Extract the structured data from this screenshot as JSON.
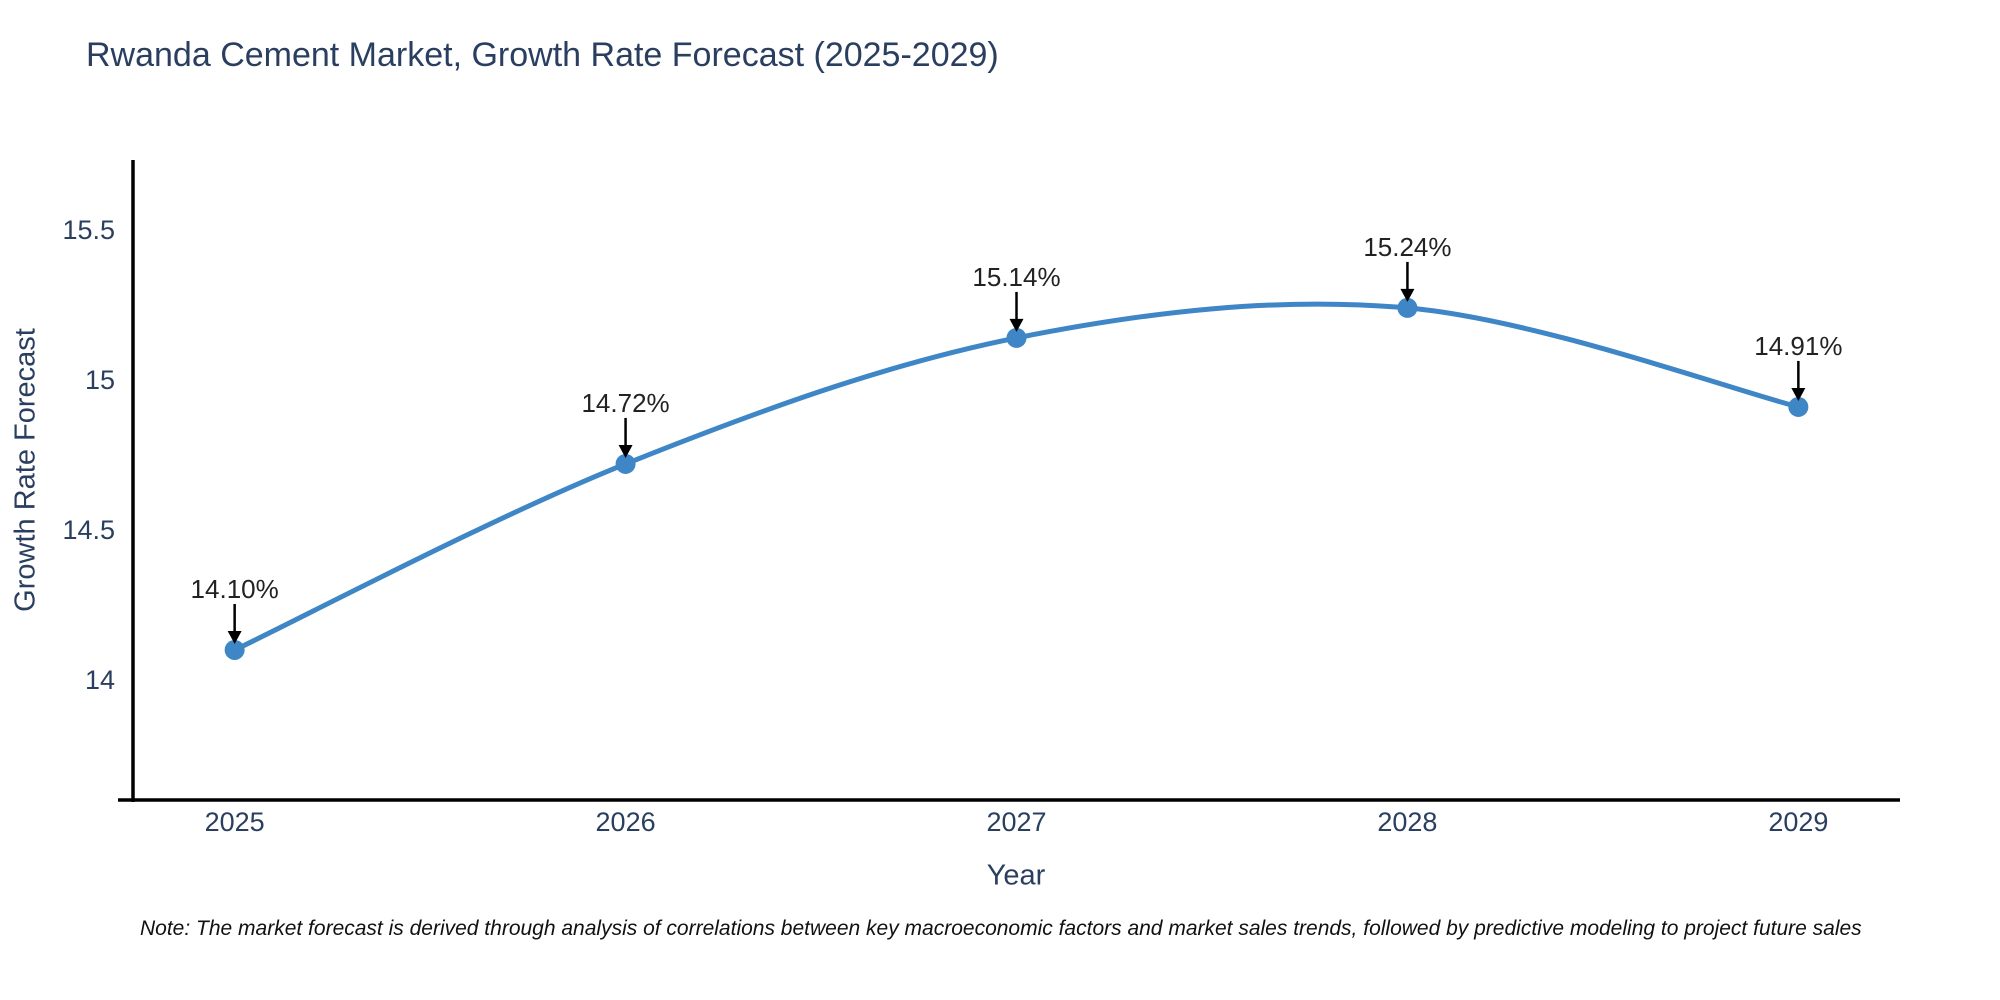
{
  "chart_data": {
    "type": "line",
    "title": "Rwanda Cement Market, Growth Rate Forecast (2025-2029)",
    "xlabel": "Year",
    "ylabel": "Growth Rate Forecast",
    "x": [
      2025,
      2026,
      2027,
      2028,
      2029
    ],
    "values": [
      14.1,
      14.72,
      15.14,
      15.24,
      14.91
    ],
    "point_labels": [
      "14.10%",
      "14.72%",
      "15.14%",
      "15.24%",
      "14.91%"
    ],
    "x_tick_labels": [
      "2025",
      "2026",
      "2027",
      "2028",
      "2029"
    ],
    "y_tick_values": [
      14,
      14.5,
      15,
      15.5
    ],
    "y_tick_labels": [
      "14",
      "14.5",
      "15",
      "15.5"
    ],
    "xlim": [
      2024.74,
      2029.26
    ],
    "ylim": [
      13.6,
      15.733
    ],
    "grid": false,
    "legend": "none",
    "line_shape": "spline",
    "line_color": "#3e86c6",
    "marker_color": "#3e86c6",
    "axis_color": "#000000",
    "text_color": "#2a3f5f",
    "annotation_text_color": "#222222",
    "annotation_arrow_color": "#000000"
  },
  "footnote": {
    "text": "Note: The market forecast is derived through analysis of correlations between key macroeconomic factors and market sales trends, followed by predictive modeling to project future sales"
  }
}
